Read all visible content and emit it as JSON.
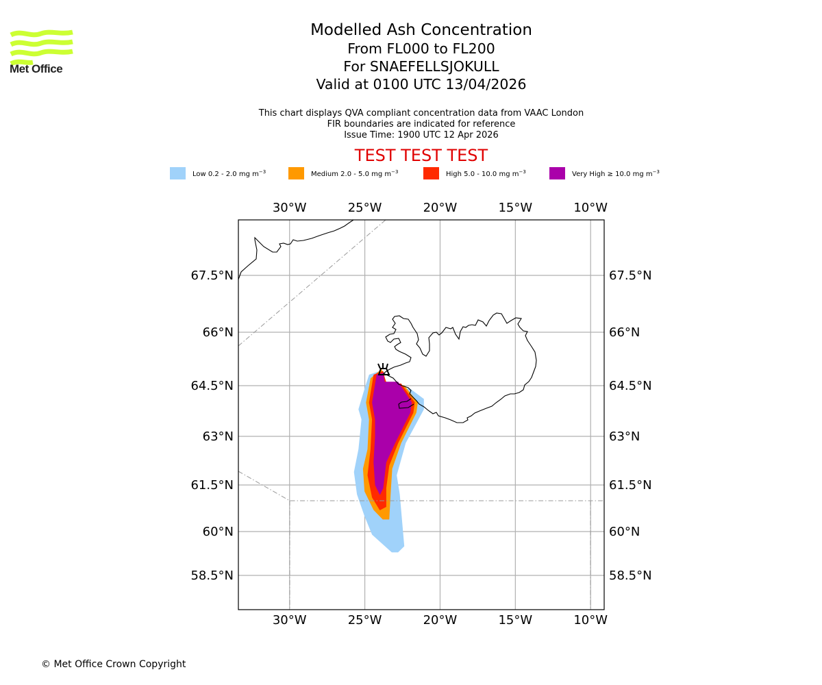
{
  "logo": {
    "name": "Met Office",
    "icon": "met-office-waves-logo",
    "color": "#ccff33"
  },
  "header": {
    "title": "Modelled Ash Concentration",
    "flight_levels": "From FL000 to FL200",
    "volcano": "For SNAEFELLSJOKULL",
    "valid_time": "Valid at 0100 UTC 13/04/2026"
  },
  "notes": {
    "line1": "This chart displays QVA compliant concentration data from VAAC London",
    "line2": "FIR boundaries are indicated for reference",
    "line3": "Issue Time: 1900 UTC 12 Apr 2026"
  },
  "test_banner": "TEST TEST TEST",
  "legend": [
    {
      "label": "Low 0.2 - 2.0 mg m",
      "exp": "−3",
      "color": "#a0d2fa"
    },
    {
      "label": "Medium 2.0 - 5.0 mg m",
      "exp": "−3",
      "color": "#ff9900"
    },
    {
      "label": "High 5.0 - 10.0 mg m",
      "exp": "−3",
      "color": "#ff2a00"
    },
    {
      "label": "Very High  ≥  10.0 mg m",
      "exp": "−3",
      "color": "#aa00aa"
    }
  ],
  "footer": {
    "copyright": "© Met Office Crown Copyright"
  },
  "chart_data": {
    "type": "heatmap",
    "title": "Modelled Ash Concentration",
    "subtitle": "From FL000 to FL200 - SNAEFELLSJOKULL - Valid at 0100 UTC 13/04/2026",
    "x_ticks": [
      "30°W",
      "25°W",
      "20°W",
      "15°W",
      "10°W"
    ],
    "x_tick_values": [
      -30,
      -25,
      -20,
      -15,
      -10
    ],
    "y_ticks": [
      "67.5°N",
      "66°N",
      "64.5°N",
      "63°N",
      "61.5°N",
      "60°N",
      "58.5°N"
    ],
    "y_tick_values": [
      67.5,
      66,
      64.5,
      63,
      61.5,
      60,
      58.5
    ],
    "xlim": [
      -33.4,
      -9.1
    ],
    "ylim": [
      57.3,
      68.9
    ],
    "grid": true,
    "legend_position": "top",
    "volcano": {
      "name": "SNAEFELLSJOKULL",
      "lon": -23.8,
      "lat": 64.8
    },
    "series": [
      {
        "name": "Low 0.2 - 2.0 mg m-3",
        "color": "#a0d2fa",
        "polygon": [
          [
            -24.0,
            64.9
          ],
          [
            -23.5,
            64.45
          ],
          [
            -22.0,
            64.4
          ],
          [
            -21.1,
            64.1
          ],
          [
            -21.1,
            63.8
          ],
          [
            -22.3,
            62.8
          ],
          [
            -22.9,
            61.8
          ],
          [
            -22.7,
            61.2
          ],
          [
            -22.4,
            59.5
          ],
          [
            -22.8,
            59.3
          ],
          [
            -23.2,
            59.3
          ],
          [
            -24.5,
            59.9
          ],
          [
            -25.0,
            60.5
          ],
          [
            -25.5,
            61.2
          ],
          [
            -25.7,
            61.9
          ],
          [
            -25.4,
            62.6
          ],
          [
            -25.2,
            63.5
          ],
          [
            -25.4,
            63.8
          ],
          [
            -25.0,
            64.4
          ],
          [
            -24.7,
            64.8
          ]
        ]
      },
      {
        "name": "Medium 2.0 - 5.0 mg m-3",
        "color": "#ff9900",
        "polygon": [
          [
            -23.9,
            64.95
          ],
          [
            -23.5,
            64.5
          ],
          [
            -22.4,
            64.5
          ],
          [
            -21.5,
            64.0
          ],
          [
            -21.6,
            63.7
          ],
          [
            -22.6,
            62.8
          ],
          [
            -23.2,
            62.0
          ],
          [
            -23.3,
            61.3
          ],
          [
            -23.4,
            60.4
          ],
          [
            -23.8,
            60.4
          ],
          [
            -24.4,
            60.7
          ],
          [
            -25.0,
            61.3
          ],
          [
            -25.1,
            62.0
          ],
          [
            -24.8,
            62.6
          ],
          [
            -24.7,
            63.5
          ],
          [
            -24.9,
            64.0
          ],
          [
            -24.6,
            64.7
          ]
        ]
      },
      {
        "name": "High 5.0 - 10.0 mg m-3",
        "color": "#ff2a00",
        "polygon": [
          [
            -23.8,
            64.9
          ],
          [
            -23.6,
            64.55
          ],
          [
            -22.6,
            64.55
          ],
          [
            -21.7,
            64.0
          ],
          [
            -21.8,
            63.7
          ],
          [
            -22.8,
            62.8
          ],
          [
            -23.4,
            62.1
          ],
          [
            -23.6,
            61.4
          ],
          [
            -23.6,
            60.8
          ],
          [
            -24.0,
            60.7
          ],
          [
            -24.5,
            61.1
          ],
          [
            -24.8,
            61.8
          ],
          [
            -24.6,
            62.6
          ],
          [
            -24.5,
            63.5
          ],
          [
            -24.7,
            64.0
          ],
          [
            -24.4,
            64.8
          ]
        ]
      },
      {
        "name": "Very High >= 10.0 mg m-3",
        "color": "#aa00aa",
        "polygon": [
          [
            -23.8,
            64.85
          ],
          [
            -23.7,
            64.6
          ],
          [
            -22.8,
            64.6
          ],
          [
            -21.9,
            64.0
          ],
          [
            -22.0,
            63.7
          ],
          [
            -23.0,
            62.8
          ],
          [
            -23.6,
            62.2
          ],
          [
            -23.8,
            61.4
          ],
          [
            -24.0,
            61.2
          ],
          [
            -24.3,
            61.5
          ],
          [
            -24.4,
            62.2
          ],
          [
            -24.3,
            63.0
          ],
          [
            -24.3,
            63.5
          ],
          [
            -24.5,
            64.0
          ],
          [
            -24.2,
            64.8
          ]
        ]
      }
    ]
  }
}
